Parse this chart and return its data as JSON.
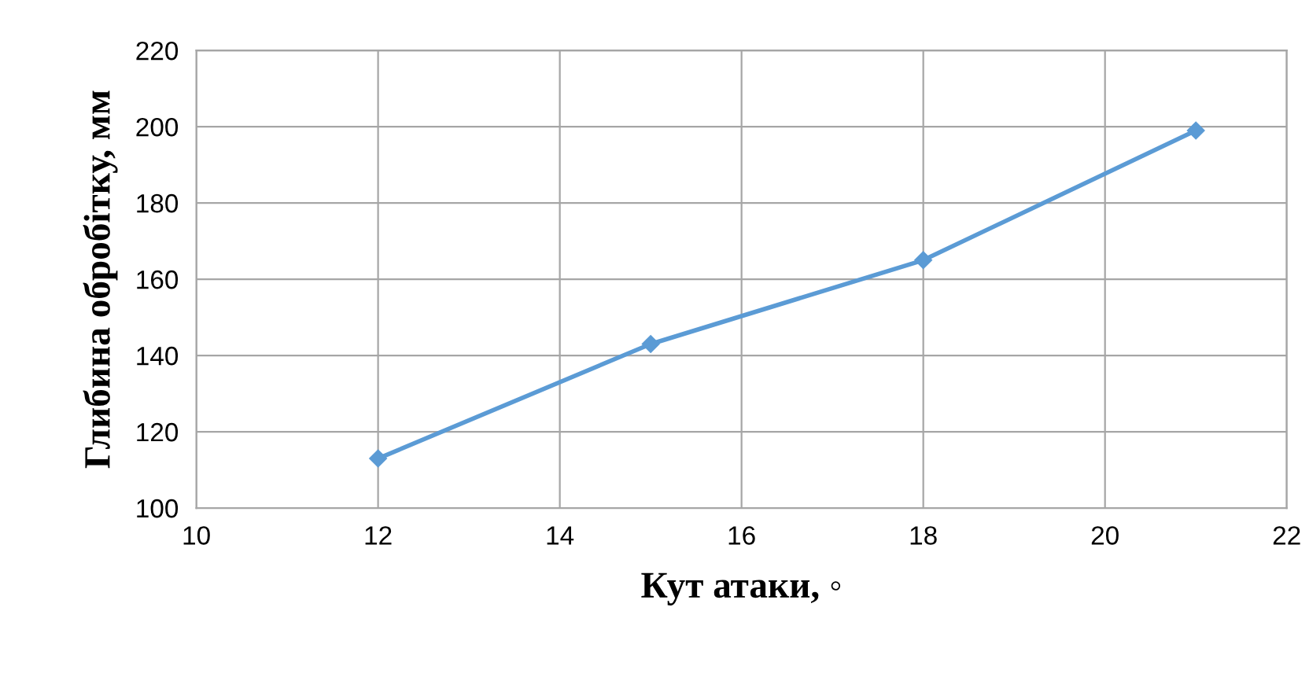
{
  "chart_data": {
    "type": "line",
    "xlabel": "Кут атаки, ◦",
    "ylabel": "Глибина обробітку, мм",
    "x": [
      12,
      15,
      18,
      21
    ],
    "series": [
      {
        "color": "#5b9bd5",
        "values": [
          113,
          143,
          165,
          199
        ]
      }
    ],
    "xlim": [
      10,
      22
    ],
    "xticks": [
      10,
      12,
      14,
      16,
      18,
      20,
      22
    ],
    "ylim": [
      100,
      220
    ],
    "yticks": [
      100,
      120,
      140,
      160,
      180,
      200,
      220
    ],
    "grid": true,
    "marker": "diamond",
    "line_style": "solid",
    "legend": false
  }
}
